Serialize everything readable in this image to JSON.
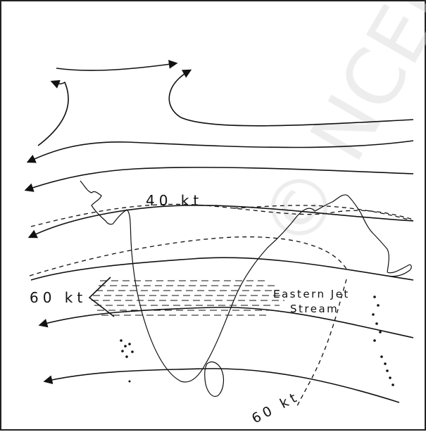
{
  "labels": {
    "speed_40": "40 kt",
    "speed_60_left": "60 kt",
    "speed_60_bottom": "60 kt",
    "jet_line1": "Eastern Jet",
    "jet_line2": "Stream"
  },
  "watermark": "© NCERT not to be republished",
  "colors": {
    "ink": "#111111",
    "background": "#ffffff",
    "watermark": "#d9d9d9"
  }
}
